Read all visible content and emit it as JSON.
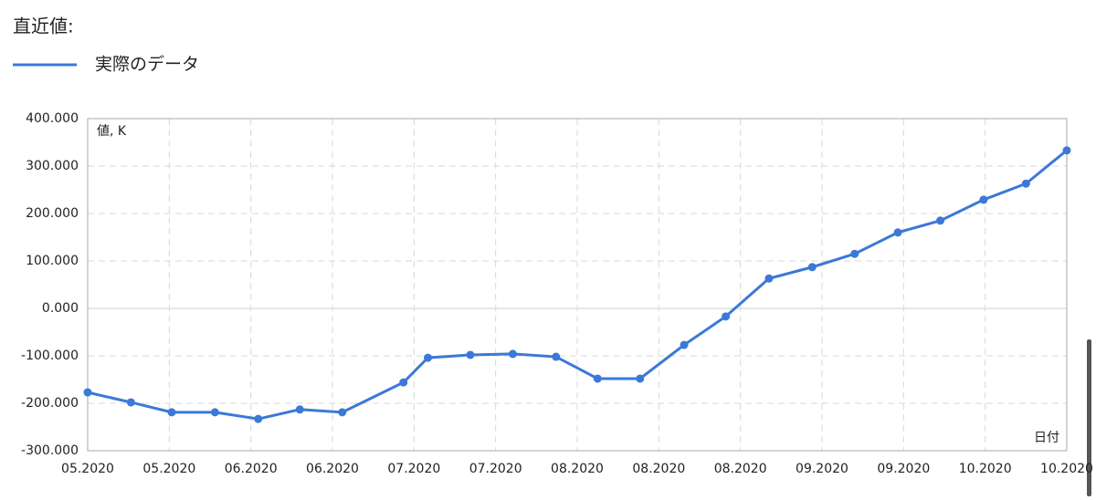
{
  "chart_data": {
    "type": "line",
    "title": "直近値:",
    "y_label": "値, K",
    "x_label": "日付",
    "series": [
      {
        "name": "実際のデータ",
        "color": "#3b78d8",
        "x": [
          0,
          0.53,
          1.03,
          1.56,
          2.09,
          2.6,
          3.12,
          3.87,
          4.17,
          4.69,
          5.21,
          5.74,
          6.25,
          6.77,
          7.31,
          7.82,
          8.35,
          8.88,
          9.4,
          9.93,
          10.45,
          10.98,
          11.5,
          12
        ],
        "values": [
          -177,
          -198,
          -219,
          -219,
          -233,
          -213,
          -219,
          -156,
          -104,
          -98,
          -96,
          -102,
          -148,
          -148,
          -77,
          -17,
          63,
          87,
          115,
          160,
          185,
          229,
          263,
          333
        ]
      }
    ],
    "xlim": [
      0,
      12
    ],
    "xticks": [
      {
        "value": 0,
        "label": "05.2020"
      },
      {
        "value": 1,
        "label": "05.2020"
      },
      {
        "value": 2,
        "label": "06.2020"
      },
      {
        "value": 3,
        "label": "06.2020"
      },
      {
        "value": 4,
        "label": "07.2020"
      },
      {
        "value": 5,
        "label": "07.2020"
      },
      {
        "value": 6,
        "label": "08.2020"
      },
      {
        "value": 7,
        "label": "08.2020"
      },
      {
        "value": 8,
        "label": "08.2020"
      },
      {
        "value": 9,
        "label": "09.2020"
      },
      {
        "value": 10,
        "label": "09.2020"
      },
      {
        "value": 11,
        "label": "10.2020"
      },
      {
        "value": 12,
        "label": "10.2020"
      }
    ],
    "ylim": [
      -300,
      400
    ],
    "yticks": [
      {
        "value": -300,
        "label": "-300.000"
      },
      {
        "value": -200,
        "label": "-200.000"
      },
      {
        "value": -100,
        "label": "-100.000"
      },
      {
        "value": 0,
        "label": "0.000"
      },
      {
        "value": 100,
        "label": "100.000"
      },
      {
        "value": 200,
        "label": "200.000"
      },
      {
        "value": 300,
        "label": "300.000"
      },
      {
        "value": 400,
        "label": "400.000"
      }
    ],
    "grid": true
  }
}
